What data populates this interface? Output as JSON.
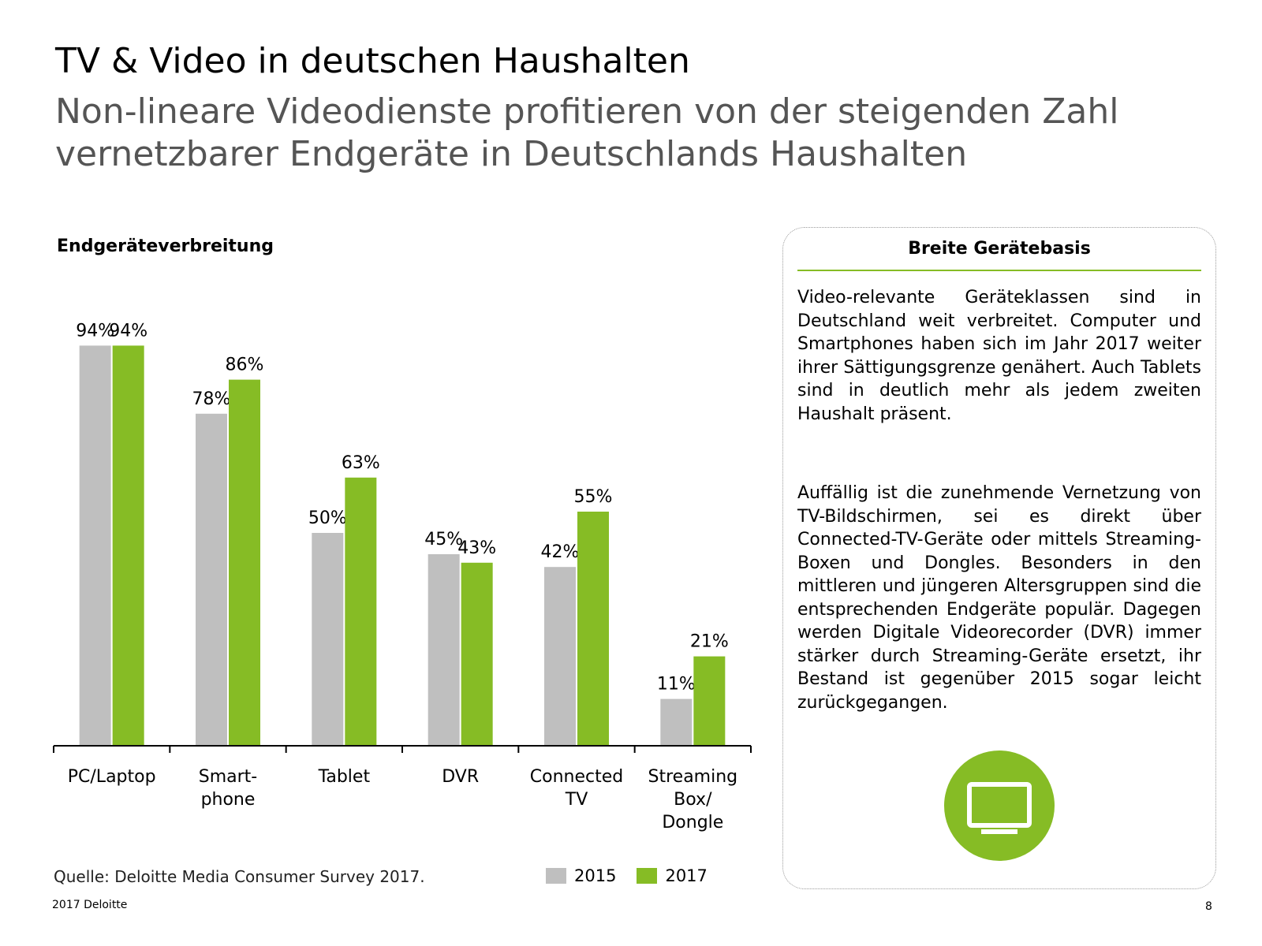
{
  "header": {
    "title": "TV & Video in deutschen Haushalten",
    "subtitle": "Non-lineare Videodienste profitieren von der steigenden Zahl vernetzbarer Endgeräte in Deutschlands Haushalten"
  },
  "chart_data": {
    "type": "bar",
    "title": "Endgeräteverbreitung",
    "categories": [
      [
        "PC/Laptop"
      ],
      [
        "Smart-",
        "phone"
      ],
      [
        "Tablet"
      ],
      [
        "DVR"
      ],
      [
        "Connected",
        "TV"
      ],
      [
        "Streaming",
        "Box/",
        "Dongle"
      ]
    ],
    "series": [
      {
        "name": "2015",
        "color": "#bfbfbf",
        "values": [
          94,
          78,
          50,
          45,
          42,
          11
        ],
        "labels": [
          "94%",
          "78%",
          "50%",
          "45%",
          "42%",
          "11%"
        ]
      },
      {
        "name": "2017",
        "color": "#86bc25",
        "values": [
          94,
          86,
          63,
          43,
          55,
          21
        ],
        "labels": [
          "94%",
          "86%",
          "63%",
          "43%",
          "55%",
          "21%"
        ]
      }
    ],
    "ylim": [
      0,
      100
    ],
    "xlabel": "",
    "ylabel": "",
    "grid": false,
    "legend": "bottom"
  },
  "legend": [
    {
      "label": "2015",
      "color": "#bfbfbf"
    },
    {
      "label": "2017",
      "color": "#86bc25"
    }
  ],
  "source": "Quelle: Deloitte Media Consumer Survey 2017.",
  "info_box": {
    "title": "Breite Gerätebasis",
    "paragraph1": "Video-relevante Geräteklassen sind in Deutschland weit verbreitet. Computer und Smartphones haben sich im Jahr 2017 weiter ihrer Sättigungsgrenze genähert. Auch Tablets sind in deutlich mehr als jedem zweiten Haushalt präsent.",
    "paragraph2": "Auffällig ist die zunehmende Vernetzung von TV-Bildschirmen, sei es direkt über Connected-TV-Geräte oder mittels Streaming-Boxen und Dongles. Besonders in den mittleren und jüngeren Altersgruppen sind die entsprechenden Endgeräte populär. Dagegen werden Digitale Videorecorder (DVR) immer stärker durch Streaming-Geräte ersetzt, ihr Bestand ist gegenüber 2015 sogar leicht zurückgegangen.",
    "icon": "tv-icon",
    "accent": "#86bc25"
  },
  "footer": {
    "brand": "2017 Deloitte",
    "page": "8"
  }
}
